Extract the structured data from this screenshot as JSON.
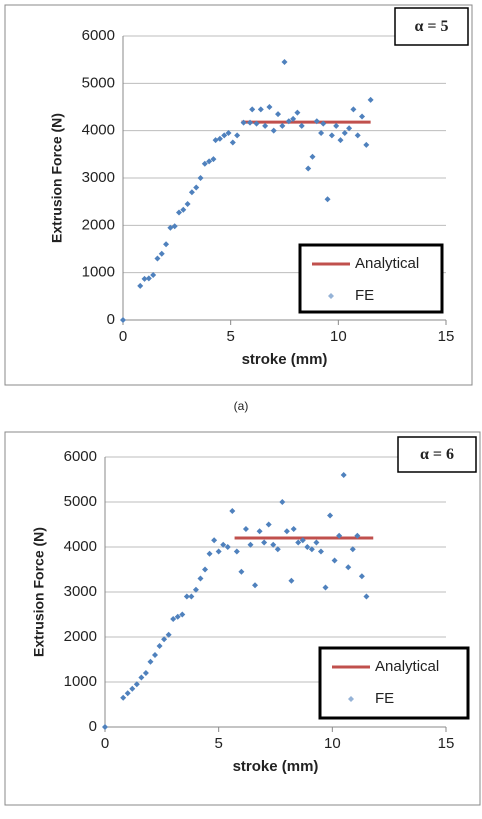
{
  "chart_data": [
    {
      "type": "scatter",
      "annotation": "α = 5",
      "caption": "(a)",
      "xlabel": "stroke (mm)",
      "ylabel": "Extrusion Force (N)",
      "xlim": [
        0,
        15
      ],
      "xticks": [
        0,
        5,
        10,
        15
      ],
      "ylim": [
        0,
        6000
      ],
      "yticks": [
        0,
        1000,
        2000,
        3000,
        4000,
        5000,
        6000
      ],
      "grid": true,
      "legend": "lower right",
      "series": [
        {
          "name": "Analytical",
          "type": "line",
          "color": "#c0504d",
          "x": [
            5.5,
            11.5
          ],
          "values": [
            4180,
            4180
          ]
        },
        {
          "name": "FE",
          "type": "scatter",
          "color": "#4f81bd",
          "x": [
            0,
            0.8,
            1,
            1.2,
            1.4,
            1.6,
            1.8,
            2,
            2.2,
            2.4,
            2.6,
            2.8,
            3,
            3.2,
            3.4,
            3.6,
            3.8,
            4,
            4.2,
            4.3,
            4.5,
            4.7,
            4.9,
            5.1,
            5.3,
            5.6,
            5.9,
            6,
            6.2,
            6.4,
            6.6,
            6.8,
            7,
            7.2,
            7.4,
            7.5,
            7.7,
            7.9,
            8.1,
            8.3,
            8.6,
            8.8,
            9,
            9.2,
            9.3,
            9.5,
            9.7,
            9.9,
            10.1,
            10.3,
            10.5,
            10.7,
            10.9,
            11.1,
            11.3,
            11.5
          ],
          "values": [
            0,
            720,
            870,
            880,
            950,
            1300,
            1400,
            1600,
            1950,
            1980,
            2270,
            2330,
            2450,
            2700,
            2800,
            3000,
            3300,
            3350,
            3400,
            3800,
            3830,
            3900,
            3950,
            3750,
            3900,
            4170,
            4170,
            4450,
            4150,
            4450,
            4100,
            4500,
            4000,
            4350,
            4100,
            5450,
            4200,
            4250,
            4380,
            4100,
            3200,
            3450,
            4200,
            3950,
            4150,
            2550,
            3900,
            4100,
            3800,
            3950,
            4050,
            4450,
            3900,
            4300,
            3700,
            4650
          ]
        }
      ]
    },
    {
      "type": "scatter",
      "annotation": "α = 6",
      "xlabel": "stroke (mm)",
      "ylabel": "Extrusion Force (N)",
      "xlim": [
        0,
        15
      ],
      "xticks": [
        0,
        5,
        10,
        15
      ],
      "ylim": [
        0,
        6000
      ],
      "yticks": [
        0,
        1000,
        2000,
        3000,
        4000,
        5000,
        6000
      ],
      "grid": true,
      "legend": "lower right",
      "series": [
        {
          "name": "Analytical",
          "type": "line",
          "color": "#c0504d",
          "x": [
            5.7,
            11.8
          ],
          "values": [
            4200,
            4200
          ]
        },
        {
          "name": "FE",
          "type": "scatter",
          "color": "#4f81bd",
          "x": [
            0,
            0.8,
            1,
            1.2,
            1.4,
            1.6,
            1.8,
            2,
            2.2,
            2.4,
            2.6,
            2.8,
            3,
            3.2,
            3.4,
            3.6,
            3.8,
            4,
            4.2,
            4.4,
            4.6,
            4.8,
            5,
            5.2,
            5.4,
            5.6,
            5.8,
            6,
            6.2,
            6.4,
            6.6,
            6.8,
            7,
            7.2,
            7.4,
            7.6,
            7.8,
            8,
            8.2,
            8.3,
            8.5,
            8.7,
            8.9,
            9.1,
            9.3,
            9.5,
            9.7,
            9.9,
            10.1,
            10.3,
            10.5,
            10.7,
            10.9,
            11.1,
            11.3,
            11.5
          ],
          "values": [
            0,
            650,
            750,
            850,
            950,
            1100,
            1200,
            1450,
            1600,
            1800,
            1950,
            2050,
            2400,
            2450,
            2500,
            2900,
            2900,
            3050,
            3300,
            3500,
            3850,
            4150,
            3900,
            4050,
            4000,
            4800,
            3900,
            3450,
            4400,
            4050,
            3150,
            4350,
            4100,
            4500,
            4050,
            3950,
            5000,
            4350,
            3250,
            4400,
            4100,
            4150,
            4000,
            3950,
            4100,
            3900,
            3100,
            4700,
            3700,
            4250,
            5600,
            3550,
            3950,
            4250,
            3350,
            2900
          ]
        }
      ]
    }
  ]
}
